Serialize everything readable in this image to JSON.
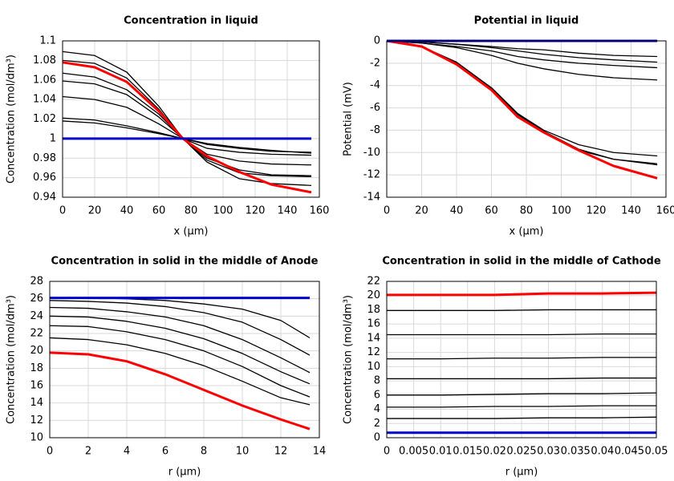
{
  "chart_data": [
    {
      "type": "line",
      "title": "Concentration in liquid",
      "xlabel": "x (µm)",
      "ylabel": "Concentration (mol/dm³)",
      "xlim": [
        0,
        160
      ],
      "xticks": [
        0,
        20,
        40,
        60,
        80,
        100,
        120,
        140,
        160
      ],
      "ylim": [
        0.94,
        1.1
      ],
      "yticks": [
        0.94,
        0.96,
        0.98,
        1,
        1.02,
        1.04,
        1.06,
        1.08,
        1.1
      ],
      "grid": true,
      "x": [
        0,
        20,
        40,
        60,
        75,
        90,
        110,
        130,
        155
      ],
      "series": [
        {
          "color": "#000000",
          "values": [
            1.089,
            1.085,
            1.068,
            1.033,
            1.0,
            0.976,
            0.959,
            0.954,
            0.952
          ]
        },
        {
          "color": "#000000",
          "values": [
            1.08,
            1.077,
            1.062,
            1.03,
            1.0,
            0.978,
            0.965,
            0.962,
            0.961
          ]
        },
        {
          "color": "#000000",
          "values": [
            1.067,
            1.063,
            1.05,
            1.025,
            1.0,
            0.98,
            0.968,
            0.963,
            0.962
          ]
        },
        {
          "color": "#000000",
          "values": [
            1.059,
            1.056,
            1.045,
            1.022,
            1.0,
            0.984,
            0.977,
            0.974,
            0.973
          ]
        },
        {
          "color": "#000000",
          "values": [
            1.043,
            1.04,
            1.032,
            1.015,
            1.0,
            0.99,
            0.986,
            0.984,
            0.983
          ]
        },
        {
          "color": "#000000",
          "values": [
            1.021,
            1.019,
            1.013,
            1.006,
            1.0,
            0.994,
            0.99,
            0.987,
            0.986
          ]
        },
        {
          "color": "#000000",
          "values": [
            1.018,
            1.016,
            1.011,
            1.005,
            1.0,
            0.995,
            0.991,
            0.988,
            0.985
          ]
        },
        {
          "color": "#ff0000",
          "values": [
            1.078,
            1.073,
            1.058,
            1.028,
            1.0,
            0.982,
            0.966,
            0.953,
            0.945
          ]
        },
        {
          "color": "#0000cc",
          "values": [
            1,
            1,
            1,
            1,
            1,
            1,
            1,
            1,
            1
          ]
        }
      ]
    },
    {
      "type": "line",
      "title": "Potential in liquid",
      "xlabel": "x (µm)",
      "ylabel": "Potential (mV)",
      "xlim": [
        0,
        160
      ],
      "xticks": [
        0,
        20,
        40,
        60,
        80,
        100,
        120,
        140,
        160
      ],
      "ylim": [
        -14,
        0
      ],
      "yticks": [
        -14,
        -12,
        -10,
        -8,
        -6,
        -4,
        -2,
        0
      ],
      "grid": true,
      "x": [
        0,
        20,
        40,
        60,
        75,
        90,
        110,
        130,
        155
      ],
      "series": [
        {
          "color": "#000000",
          "values": [
            0,
            -0.1,
            -0.3,
            -0.5,
            -0.7,
            -0.8,
            -1.1,
            -1.3,
            -1.4
          ]
        },
        {
          "color": "#000000",
          "values": [
            0,
            -0.1,
            -0.3,
            -0.6,
            -0.9,
            -1.2,
            -1.5,
            -1.7,
            -1.9
          ]
        },
        {
          "color": "#000000",
          "values": [
            0,
            -0.2,
            -0.5,
            -0.9,
            -1.4,
            -1.7,
            -2.0,
            -2.2,
            -2.4
          ]
        },
        {
          "color": "#000000",
          "values": [
            0,
            -0.2,
            -0.6,
            -1.3,
            -2.0,
            -2.5,
            -3.0,
            -3.3,
            -3.5
          ]
        },
        {
          "color": "#000000",
          "values": [
            0,
            -0.5,
            -2.0,
            -4.2,
            -6.5,
            -8.0,
            -9.3,
            -10.0,
            -10.3
          ]
        },
        {
          "color": "#000000",
          "values": [
            0,
            -0.5,
            -2.0,
            -4.3,
            -6.6,
            -8.1,
            -9.7,
            -10.6,
            -11.1
          ]
        },
        {
          "color": "#000000",
          "values": [
            0,
            -0.5,
            -1.9,
            -4.2,
            -6.5,
            -8.1,
            -9.8,
            -10.6,
            -11.0
          ]
        },
        {
          "color": "#ff0000",
          "values": [
            0,
            -0.5,
            -2.1,
            -4.4,
            -6.8,
            -8.2,
            -9.8,
            -11.2,
            -12.3
          ]
        },
        {
          "color": "#0000cc",
          "values": [
            0,
            0,
            0,
            0,
            0,
            0,
            0,
            0,
            0
          ]
        }
      ]
    },
    {
      "type": "line",
      "title": "Concentration in solid in the middle of Anode",
      "xlabel": "r (µm)",
      "ylabel": "Concentration (mol/dm³)",
      "xlim": [
        0,
        14
      ],
      "xticks": [
        0,
        2,
        4,
        6,
        8,
        10,
        12,
        14
      ],
      "ylim": [
        10,
        28
      ],
      "yticks": [
        10,
        12,
        14,
        16,
        18,
        20,
        22,
        24,
        26,
        28
      ],
      "grid": true,
      "x": [
        0,
        2,
        4,
        6,
        8,
        10,
        12,
        13.5
      ],
      "series": [
        {
          "color": "#000000",
          "values": [
            26.1,
            26.1,
            26.0,
            25.8,
            25.4,
            24.8,
            23.5,
            21.5
          ]
        },
        {
          "color": "#000000",
          "values": [
            25.8,
            25.7,
            25.5,
            25.1,
            24.4,
            23.3,
            21.3,
            19.5
          ]
        },
        {
          "color": "#000000",
          "values": [
            25.0,
            24.9,
            24.5,
            23.9,
            22.9,
            21.3,
            19.2,
            17.5
          ]
        },
        {
          "color": "#000000",
          "values": [
            24.0,
            23.9,
            23.4,
            22.6,
            21.4,
            19.7,
            17.6,
            16.2
          ]
        },
        {
          "color": "#000000",
          "values": [
            22.9,
            22.8,
            22.2,
            21.3,
            20.0,
            18.2,
            16.0,
            14.7
          ]
        },
        {
          "color": "#000000",
          "values": [
            21.5,
            21.3,
            20.7,
            19.7,
            18.3,
            16.5,
            14.6,
            13.8
          ]
        },
        {
          "color": "#ff0000",
          "values": [
            19.8,
            19.6,
            18.8,
            17.3,
            15.5,
            13.7,
            12.1,
            11.0
          ]
        },
        {
          "color": "#0000cc",
          "values": [
            26.1,
            26.1,
            26.1,
            26.1,
            26.1,
            26.1,
            26.1,
            26.1
          ]
        }
      ]
    },
    {
      "type": "line",
      "title": "Concentration in solid in the middle of Cathode",
      "xlabel": "r (µm)",
      "ylabel": "Concentration (mol/dm³)",
      "xlim": [
        0,
        0.05
      ],
      "xticks": [
        0,
        0.005,
        0.01,
        0.015,
        0.02,
        0.025,
        0.03,
        0.035,
        0.04,
        0.045,
        0.05
      ],
      "ylim": [
        0,
        22
      ],
      "yticks": [
        0,
        2,
        4,
        6,
        8,
        10,
        12,
        14,
        16,
        18,
        20,
        22
      ],
      "grid": true,
      "x": [
        0,
        0.01,
        0.02,
        0.03,
        0.04,
        0.05
      ],
      "series": [
        {
          "color": "#000000",
          "values": [
            17.9,
            17.9,
            17.9,
            18.0,
            18.0,
            18.0
          ]
        },
        {
          "color": "#000000",
          "values": [
            14.5,
            14.5,
            14.5,
            14.5,
            14.6,
            14.6
          ]
        },
        {
          "color": "#000000",
          "values": [
            11.1,
            11.1,
            11.2,
            11.2,
            11.3,
            11.3
          ]
        },
        {
          "color": "#000000",
          "values": [
            8.3,
            8.3,
            8.3,
            8.3,
            8.4,
            8.4
          ]
        },
        {
          "color": "#000000",
          "values": [
            6.0,
            6.0,
            6.1,
            6.2,
            6.2,
            6.3
          ]
        },
        {
          "color": "#000000",
          "values": [
            4.3,
            4.3,
            4.4,
            4.4,
            4.5,
            4.5
          ]
        },
        {
          "color": "#000000",
          "values": [
            2.7,
            2.7,
            2.7,
            2.8,
            2.8,
            2.9
          ]
        },
        {
          "color": "#ff0000",
          "values": [
            20.1,
            20.1,
            20.1,
            20.3,
            20.3,
            20.4
          ]
        },
        {
          "color": "#0000cc",
          "values": [
            0.7,
            0.7,
            0.7,
            0.7,
            0.7,
            0.7
          ]
        }
      ]
    }
  ]
}
